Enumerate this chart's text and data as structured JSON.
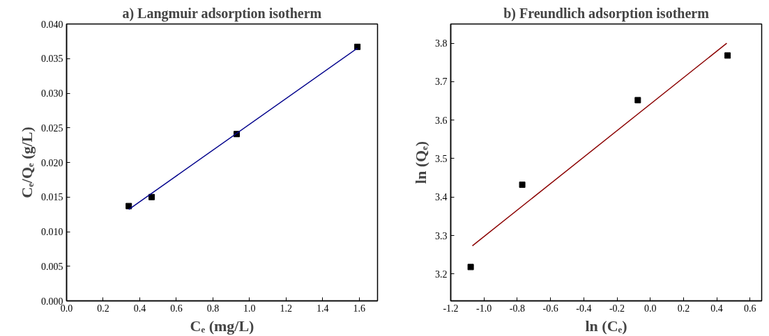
{
  "chart_data": [
    {
      "type": "scatter",
      "title": "a) Langmuir adsorption isotherm",
      "xlabel": "Cₑ (mg/L)",
      "ylabel": "Cₑ/Qₑ (g/L)",
      "xlim": [
        0,
        1.7
      ],
      "ylim": [
        0,
        0.04
      ],
      "xticks": [
        {
          "value": 0,
          "label": "0.0"
        },
        0.2,
        0.4,
        0.6,
        0.8,
        {
          "value": 1,
          "label": "1.0"
        },
        1.2,
        1.4,
        1.6
      ],
      "yticks": [
        {
          "value": 0,
          "label": "0.000"
        },
        {
          "value": 0.005,
          "label": "0.005"
        },
        {
          "value": 0.01,
          "label": "0.010"
        },
        {
          "value": 0.015,
          "label": "0.015"
        },
        {
          "value": 0.02,
          "label": "0.020"
        },
        {
          "value": 0.025,
          "label": "0.025"
        },
        {
          "value": 0.03,
          "label": "0.030"
        },
        {
          "value": 0.035,
          "label": "0.035"
        },
        {
          "value": 0.04,
          "label": "0.040"
        }
      ],
      "grid": false,
      "series": [
        {
          "marker": "square",
          "color": "#000000",
          "x": [
            0.34,
            0.465,
            0.93,
            1.59
          ],
          "values": [
            0.0137,
            0.015,
            0.0241,
            0.0367
          ]
        },
        {
          "type": "line",
          "color": "#00008b",
          "x": [
            0.34,
            1.59
          ],
          "values": [
            0.0132,
            0.0365
          ]
        }
      ]
    },
    {
      "type": "scatter",
      "title": "b) Freundlich adsorption isotherm",
      "xlabel": "ln (Cₑ)",
      "ylabel": "ln (Qₑ)",
      "xlim": [
        -1.2,
        0.67
      ],
      "ylim": [
        3.13,
        3.85
      ],
      "xticks": [
        -1.2,
        {
          "value": -1,
          "label": "-1.0"
        },
        -0.8,
        -0.6,
        -0.4,
        -0.2,
        {
          "value": 0,
          "label": "0.0"
        },
        0.2,
        0.4,
        0.6
      ],
      "yticks": [
        3.2,
        3.3,
        3.4,
        3.5,
        3.6,
        3.7,
        3.8
      ],
      "grid": false,
      "series": [
        {
          "marker": "square",
          "color": "#000000",
          "x": [
            -1.08,
            -0.77,
            -0.075,
            0.465
          ],
          "values": [
            3.218,
            3.432,
            3.652,
            3.768
          ]
        },
        {
          "type": "line",
          "color": "#8b0000",
          "x": [
            -1.07,
            0.46
          ],
          "values": [
            3.273,
            3.8
          ]
        }
      ]
    }
  ]
}
